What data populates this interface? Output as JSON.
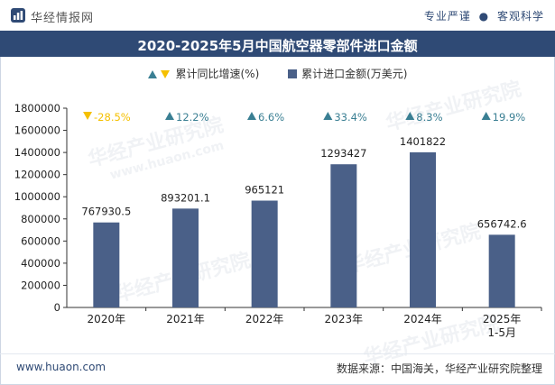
{
  "header": {
    "brand": "华经情报网",
    "tagline_left": "专业严谨",
    "tagline_sep": "●",
    "tagline_right": "客观科学"
  },
  "colors": {
    "bar": "#4a6088",
    "up": "#3a7f93",
    "down": "#f5c000",
    "title_bg": "#2f4a75"
  },
  "chart_data": {
    "type": "bar",
    "title": "2020-2025年5月中国航空器零部件进口金额",
    "categories": [
      "2020年",
      "2021年",
      "2022年",
      "2023年",
      "2024年",
      "2025年\n1-5月"
    ],
    "category_lines": [
      [
        "2020年"
      ],
      [
        "2021年"
      ],
      [
        "2022年"
      ],
      [
        "2023年"
      ],
      [
        "2024年"
      ],
      [
        "2025年",
        "1-5月"
      ]
    ],
    "series": [
      {
        "name": "累计进口金额(万美元)",
        "values": [
          767930.5,
          893201.1,
          965121,
          1293427,
          1401822,
          656742.6
        ],
        "labels": [
          "767930.5",
          "893201.1",
          "965121",
          "1293427",
          "1401822",
          "656742.6"
        ]
      },
      {
        "name": "累计同比增速(%)",
        "values": [
          -28.5,
          12.2,
          6.6,
          33.4,
          8.3,
          19.9
        ],
        "labels": [
          "-28.5%",
          "12.2%",
          "6.6%",
          "33.4%",
          "8.3%",
          "19.9%"
        ]
      }
    ],
    "ylim": [
      0,
      1800000
    ],
    "yticks": [
      0,
      200000,
      400000,
      600000,
      800000,
      1000000,
      1200000,
      1400000,
      1600000,
      1800000
    ],
    "ytick_labels": [
      "0",
      "200000",
      "400000",
      "600000",
      "800000",
      "1000000",
      "1200000",
      "1400000",
      "1600000",
      "1800000"
    ],
    "legend_position": "top-center",
    "grid": false
  },
  "footer": {
    "website": "www.huaon.com",
    "source": "数据来源：中国海关，华经产业研究院整理"
  },
  "watermark": {
    "text_cn": "华经产业研究院",
    "text_url": "www.huaon.com"
  }
}
